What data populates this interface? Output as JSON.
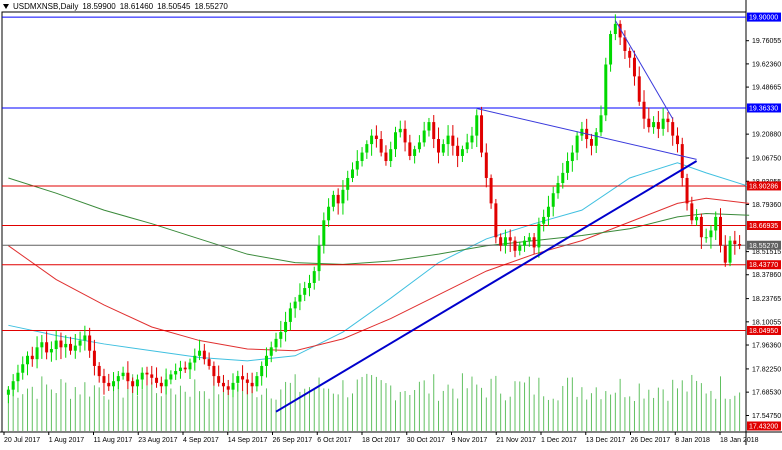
{
  "header": {
    "symbol": "USDMXNSB,Daily",
    "open": "18.59900",
    "high": "18.61460",
    "low": "18.50545",
    "close": "18.55270"
  },
  "chart_data": {
    "type": "candlestick",
    "ylim": [
      17.432,
      19.9
    ],
    "y_tick_labels": [
      "19.76055",
      "19.62360",
      "19.48665",
      "19.20880",
      "19.06750",
      "18.93055",
      "18.79360",
      "18.51515",
      "18.37860",
      "18.23765",
      "18.10055",
      "17.96360",
      "17.82250",
      "17.68530",
      "17.54750"
    ],
    "y_tick_values": [
      19.76055,
      19.6236,
      19.48665,
      19.2088,
      19.0675,
      18.93055,
      18.7936,
      18.51515,
      18.3786,
      18.23765,
      18.10055,
      17.9636,
      17.8225,
      17.6853,
      17.5475
    ],
    "price_levels": [
      {
        "label": "19.90000",
        "value": 19.9,
        "color": "#0000ff"
      },
      {
        "label": "19.36330",
        "value": 19.3633,
        "color": "#0000ff"
      },
      {
        "label": "18.90286",
        "value": 18.90286,
        "color": "#e00000"
      },
      {
        "label": "18.66935",
        "value": 18.66935,
        "color": "#e00000"
      },
      {
        "label": "18.55270",
        "value": 18.5527,
        "color": "#606060"
      },
      {
        "label": "18.43770",
        "value": 18.4377,
        "color": "#e00000"
      },
      {
        "label": "18.04950",
        "value": 18.0495,
        "color": "#e00000"
      },
      {
        "label": "17.43200",
        "value": 17.432,
        "color": "#e00000"
      }
    ],
    "x_tick_labels": [
      "20 Jul 2017",
      "1 Aug 2017",
      "11 Aug 2017",
      "23 Aug 2017",
      "4 Sep 2017",
      "14 Sep 2017",
      "26 Sep 2017",
      "6 Oct 2017",
      "18 Oct 2017",
      "30 Oct 2017",
      "9 Nov 2017",
      "21 Nov 2017",
      "1 Dec 2017",
      "13 Dec 2017",
      "26 Dec 2017",
      "8 Jan 2018",
      "18 Jan 2018"
    ],
    "closes": [
      17.7,
      17.75,
      17.8,
      17.85,
      17.9,
      17.88,
      17.95,
      17.98,
      17.92,
      17.94,
      17.99,
      17.95,
      17.97,
      17.93,
      17.96,
      17.99,
      18.02,
      17.93,
      17.84,
      17.78,
      17.74,
      17.72,
      17.75,
      17.78,
      17.8,
      17.75,
      17.72,
      17.76,
      17.8,
      17.79,
      17.77,
      17.74,
      17.72,
      17.76,
      17.79,
      17.81,
      17.83,
      17.82,
      17.86,
      17.9,
      17.93,
      17.88,
      17.84,
      17.78,
      17.74,
      17.72,
      17.7,
      17.74,
      17.78,
      17.76,
      17.74,
      17.72,
      17.78,
      17.84,
      17.9,
      17.95,
      18.0,
      18.04,
      18.1,
      18.18,
      18.22,
      18.26,
      18.3,
      18.33,
      18.4,
      18.55,
      18.7,
      18.78,
      18.85,
      18.8,
      18.88,
      18.95,
      19.0,
      19.05,
      19.1,
      19.15,
      19.2,
      19.18,
      19.1,
      19.05,
      19.12,
      19.22,
      19.24,
      19.16,
      19.08,
      19.12,
      19.16,
      19.23,
      19.28,
      19.18,
      19.1,
      19.15,
      19.2,
      19.14,
      19.08,
      19.12,
      19.16,
      19.2,
      19.32,
      19.1,
      18.95,
      18.8,
      18.6,
      18.55,
      18.6,
      18.58,
      18.52,
      18.55,
      18.58,
      18.6,
      18.54,
      18.68,
      18.72,
      18.78,
      18.86,
      18.92,
      18.98,
      19.05,
      19.1,
      19.2,
      19.24,
      19.18,
      19.14,
      19.22,
      19.32,
      19.62,
      19.8,
      19.86,
      19.78,
      19.7,
      19.66,
      19.55,
      19.4,
      19.3,
      19.25,
      19.28,
      19.24,
      19.3,
      19.28,
      19.2,
      19.15,
      18.95,
      18.8,
      18.7,
      18.72,
      18.6,
      18.6,
      18.64,
      18.72,
      18.55,
      18.45,
      18.58,
      18.56,
      18.55
    ],
    "trendlines": [
      {
        "name": "support",
        "from": [
          56,
          17.57
        ],
        "to": [
          144,
          19.05
        ],
        "color": "#0000cc"
      },
      {
        "name": "resistance-upper",
        "from": [
          127,
          19.88
        ],
        "to": [
          139,
          19.3
        ],
        "color": "#3a3adc"
      },
      {
        "name": "resistance-lower",
        "from": [
          98,
          19.36
        ],
        "to": [
          144,
          19.06
        ],
        "color": "#3a3adc"
      }
    ],
    "moving_averages": [
      {
        "color": "#40c0e0",
        "points": [
          [
            0,
            18.08
          ],
          [
            10,
            18.02
          ],
          [
            20,
            17.97
          ],
          [
            30,
            17.93
          ],
          [
            40,
            17.89
          ],
          [
            50,
            17.87
          ],
          [
            60,
            17.9
          ],
          [
            70,
            18.04
          ],
          [
            80,
            18.24
          ],
          [
            90,
            18.45
          ],
          [
            100,
            18.59
          ],
          [
            110,
            18.68
          ],
          [
            120,
            18.76
          ],
          [
            130,
            18.95
          ],
          [
            140,
            19.04
          ],
          [
            146,
            18.98
          ],
          [
            155,
            18.9
          ]
        ]
      },
      {
        "color": "#e03030",
        "points": [
          [
            0,
            18.55
          ],
          [
            10,
            18.35
          ],
          [
            20,
            18.2
          ],
          [
            30,
            18.07
          ],
          [
            40,
            17.99
          ],
          [
            50,
            17.94
          ],
          [
            60,
            17.93
          ],
          [
            70,
            18.0
          ],
          [
            80,
            18.12
          ],
          [
            90,
            18.26
          ],
          [
            100,
            18.4
          ],
          [
            110,
            18.5
          ],
          [
            120,
            18.58
          ],
          [
            130,
            18.69
          ],
          [
            140,
            18.8
          ],
          [
            146,
            18.83
          ],
          [
            155,
            18.8
          ]
        ]
      },
      {
        "color": "#3a8a3a",
        "points": [
          [
            0,
            18.95
          ],
          [
            10,
            18.86
          ],
          [
            20,
            18.76
          ],
          [
            30,
            18.68
          ],
          [
            40,
            18.59
          ],
          [
            50,
            18.5
          ],
          [
            60,
            18.45
          ],
          [
            70,
            18.44
          ],
          [
            80,
            18.46
          ],
          [
            90,
            18.5
          ],
          [
            100,
            18.55
          ],
          [
            110,
            18.58
          ],
          [
            120,
            18.61
          ],
          [
            130,
            18.65
          ],
          [
            140,
            18.72
          ],
          [
            146,
            18.74
          ],
          [
            155,
            18.73
          ]
        ]
      }
    ],
    "volume_color": "#60c060",
    "up_color": "#00d800",
    "down_color": "#e00000"
  }
}
